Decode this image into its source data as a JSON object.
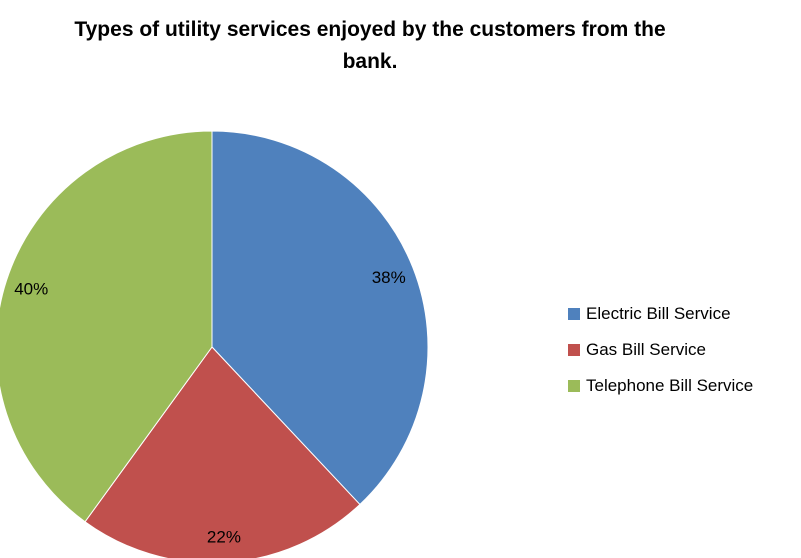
{
  "chart_data": {
    "type": "pie",
    "title_line1": "Types of utility services enjoyed  by the customers from the",
    "title_line2": "bank.",
    "categories": [
      "Electric Bill Service",
      "Gas Bill Service",
      "Telephone Bill Service"
    ],
    "values": [
      38,
      22,
      40
    ],
    "labels": [
      "38%",
      "22%",
      "40%"
    ],
    "colors": [
      "#4F81BD",
      "#C0504D",
      "#9BBB59"
    ],
    "start_angle": "12 o'clock",
    "direction": "clockwise",
    "legend_position": "right"
  }
}
